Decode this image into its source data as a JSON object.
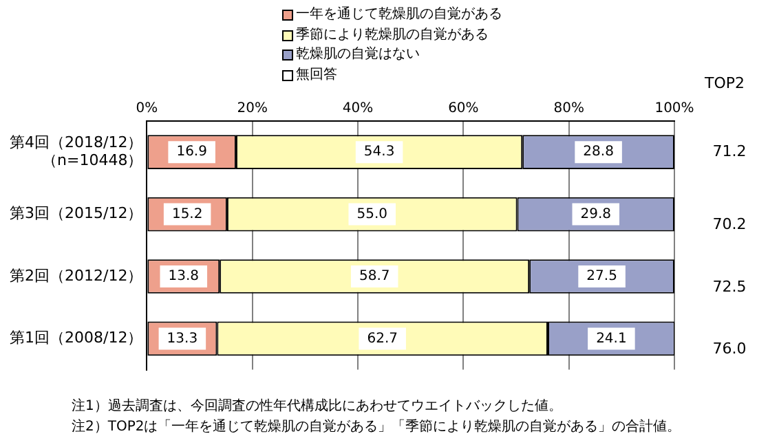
{
  "chart_data": {
    "type": "bar",
    "orientation": "horizontal",
    "stacked": true,
    "categories": [
      "第4回（2018/12）（n=10448）",
      "第3回（2015/12）",
      "第2回（2012/12）",
      "第1回（2008/12）"
    ],
    "series": [
      {
        "name": "一年を通じて乾燥肌の自覚がある",
        "color": "#eea08c",
        "values": [
          16.9,
          15.2,
          13.8,
          13.3
        ],
        "value_labels": [
          "16.9",
          "15.2",
          "13.8",
          "13.3"
        ]
      },
      {
        "name": "季節により乾燥肌の自覚がある",
        "color": "#fffbb8",
        "values": [
          54.3,
          55.0,
          58.7,
          62.7
        ],
        "value_labels": [
          "54.3",
          "55.0",
          "58.7",
          "62.7"
        ]
      },
      {
        "name": "乾燥肌の自覚はない",
        "color": "#99a0c8",
        "values": [
          28.8,
          29.8,
          27.5,
          24.1
        ],
        "value_labels": [
          "28.8",
          "29.8",
          "27.5",
          "24.1"
        ]
      },
      {
        "name": "無回答",
        "color": "#ffffff",
        "values": [
          null,
          null,
          null,
          null
        ]
      }
    ],
    "xlim": [
      0,
      100
    ],
    "xticks": [
      {
        "value": 0,
        "label": "0%"
      },
      {
        "value": 20,
        "label": "20%"
      },
      {
        "value": 40,
        "label": "40%"
      },
      {
        "value": 60,
        "label": "60%"
      },
      {
        "value": 80,
        "label": "80%"
      },
      {
        "value": 100,
        "label": "100%"
      }
    ],
    "grid": "x",
    "legend": "top",
    "annotations": [
      "TOP2",
      "71.2",
      "70.2",
      "72.5",
      "76.0",
      "注1）過去調査は、今回調査の性年代構成比にあわせてウエイトバックした値。",
      "注2）TOP2は「一年を通じて乾燥肌の自覚がある」「季節により乾燥肌の自覚がある」の合計値。"
    ]
  }
}
